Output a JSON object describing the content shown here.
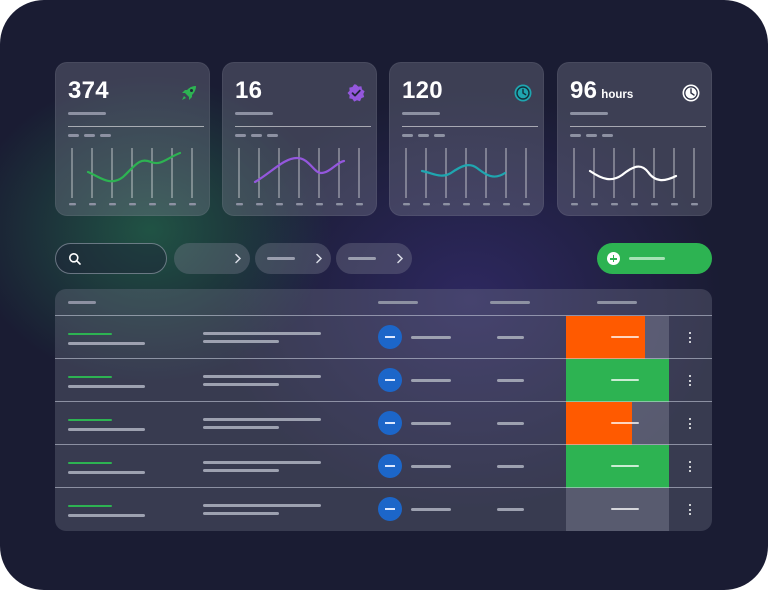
{
  "stat_cards": [
    {
      "value": "374",
      "unit": "",
      "icon": "rocket-icon",
      "accent": "#2db352"
    },
    {
      "value": "16",
      "unit": "",
      "icon": "verified-badge-icon",
      "accent": "#9457dd"
    },
    {
      "value": "120",
      "unit": "",
      "icon": "timer-icon",
      "accent": "#1fa6b0"
    },
    {
      "value": "96",
      "unit": "hours",
      "icon": "clock-icon",
      "accent": "#ffffff"
    }
  ],
  "toolbar": {
    "search_icon": "search-icon",
    "filter_icon": "chevron-right-icon",
    "add_icon": "plus-icon",
    "add_color": "#2db352"
  },
  "table": {
    "rows": [
      {
        "progress": 0.77,
        "status_color": "#ff5a00"
      },
      {
        "progress": 1.0,
        "status_color": "#2db352"
      },
      {
        "progress": 0.64,
        "status_color": "#ff5a00"
      },
      {
        "progress": 1.0,
        "status_color": "#2db352"
      },
      {
        "progress": 0.0,
        "status_color": ""
      }
    ],
    "row_menu_icon": "kebab-menu-icon"
  }
}
